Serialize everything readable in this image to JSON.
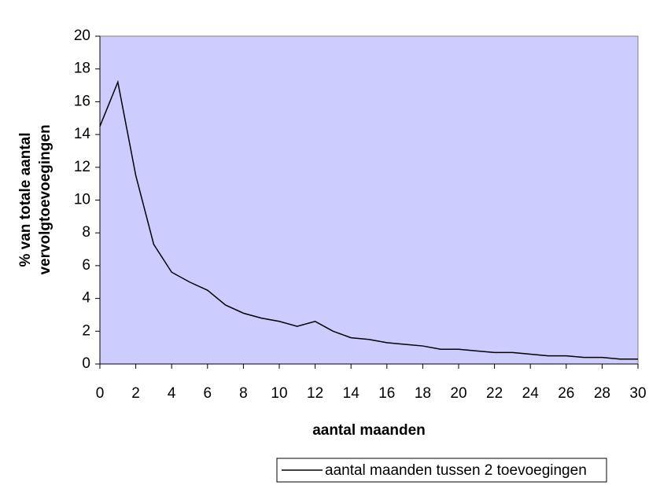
{
  "chart_data": {
    "type": "line",
    "xlabel": "aantal maanden",
    "ylabel": [
      "% van totale aantal",
      "vervolgtoevoegingen"
    ],
    "x": [
      0,
      1,
      2,
      3,
      4,
      5,
      6,
      7,
      8,
      9,
      10,
      11,
      12,
      13,
      14,
      15,
      16,
      17,
      18,
      19,
      20,
      21,
      22,
      23,
      24,
      25,
      26,
      27,
      28,
      29,
      30
    ],
    "series": [
      {
        "name": "aantal maanden tussen 2 toevoegingen",
        "color": "#000000",
        "values": [
          14.5,
          17.2,
          11.5,
          7.3,
          5.6,
          5.0,
          4.5,
          3.6,
          3.1,
          2.8,
          2.6,
          2.3,
          2.6,
          2.0,
          1.6,
          1.5,
          1.3,
          1.2,
          1.1,
          0.9,
          0.9,
          0.8,
          0.7,
          0.7,
          0.6,
          0.5,
          0.5,
          0.4,
          0.4,
          0.3,
          0.3
        ]
      }
    ],
    "xlim": [
      0,
      30
    ],
    "xticks": [
      0,
      2,
      4,
      6,
      8,
      10,
      12,
      14,
      16,
      18,
      20,
      22,
      24,
      26,
      28,
      30
    ],
    "ylim": [
      0,
      20
    ],
    "yticks": [
      0,
      2,
      4,
      6,
      8,
      10,
      12,
      14,
      16,
      18,
      20
    ],
    "plot_background": "#ccccff",
    "legend": "bottom"
  }
}
